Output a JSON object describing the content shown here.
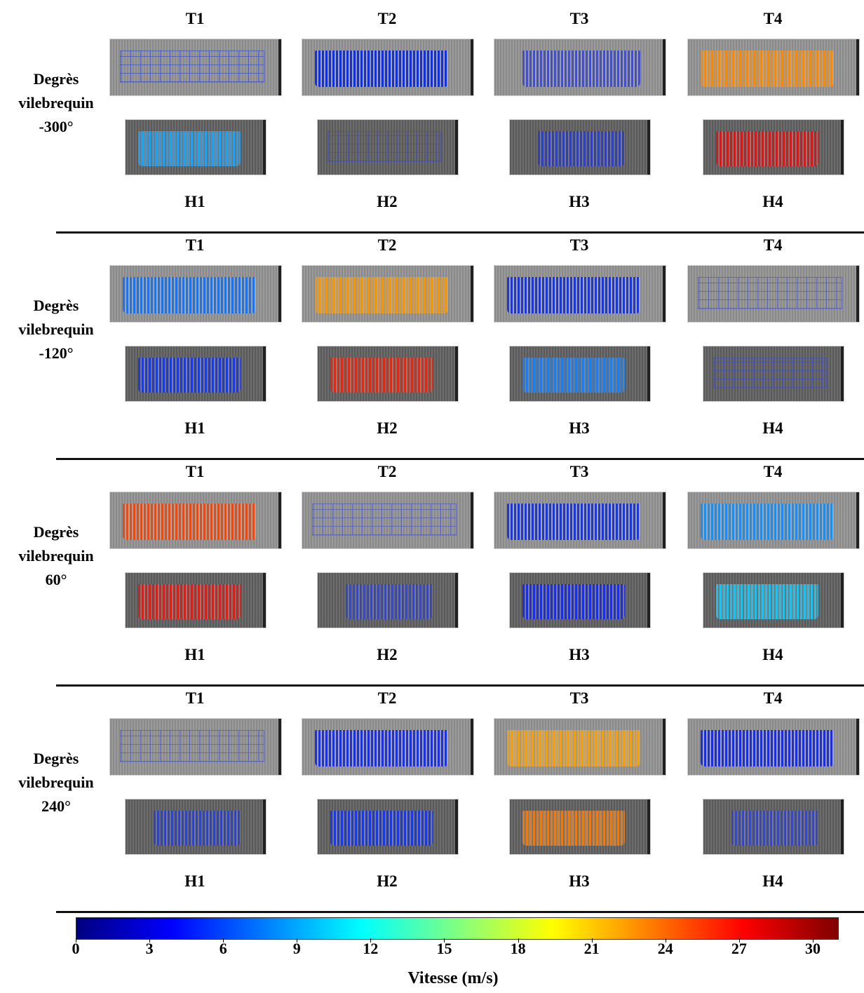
{
  "rows": [
    {
      "label_lines": [
        "Degrès",
        "vilebrequin",
        "-300°"
      ],
      "top": [
        "T1",
        "T2",
        "T3",
        "T4"
      ],
      "bottom": [
        "H1",
        "H2",
        "H3",
        "H4"
      ],
      "top_colors": [
        "#1f3ee0",
        "#1030e8",
        "#2a3ad8",
        "#f08a10"
      ],
      "bottom_colors": [
        "#22a0ee",
        "#3a48c8",
        "#1c34dc",
        "#d21a1a"
      ],
      "top_style": [
        "dots",
        "solid",
        "mixed",
        "solid"
      ],
      "bottom_style": [
        "solid",
        "dots",
        "mixed",
        "solid"
      ]
    },
    {
      "label_lines": [
        "Degrès",
        "vilebrequin",
        "-120°"
      ],
      "top": [
        "T1",
        "T2",
        "T3",
        "T4"
      ],
      "bottom": [
        "H1",
        "H2",
        "H3",
        "H4"
      ],
      "top_colors": [
        "#1a74f0",
        "#f0960e",
        "#1a36e0",
        "#3a4ad0"
      ],
      "bottom_colors": [
        "#1c3ae2",
        "#dc2a14",
        "#1a7ef0",
        "#3a4ad0"
      ],
      "top_style": [
        "solid",
        "solid",
        "solid",
        "dots"
      ],
      "bottom_style": [
        "solid",
        "solid",
        "solid",
        "dots"
      ]
    },
    {
      "label_lines": [
        "Degrès",
        "vilebrequin",
        "60°"
      ],
      "top": [
        "T1",
        "T2",
        "T3",
        "T4"
      ],
      "bottom": [
        "H1",
        "H2",
        "H3",
        "H4"
      ],
      "top_colors": [
        "#ea4a14",
        "#3a4ad0",
        "#1a36e0",
        "#1c8ef0"
      ],
      "bottom_colors": [
        "#d8201a",
        "#2a40d8",
        "#1a2ee8",
        "#1ec0ee"
      ],
      "top_style": [
        "solid",
        "dots",
        "solid",
        "solid"
      ],
      "bottom_style": [
        "solid",
        "mixed",
        "solid",
        "solid"
      ]
    },
    {
      "label_lines": [
        "Degrès",
        "vilebrequin",
        "240°"
      ],
      "top": [
        "T1",
        "T2",
        "T3",
        "T4"
      ],
      "bottom": [
        "H1",
        "H2",
        "H3",
        "H4"
      ],
      "top_colors": [
        "#3a4ad0",
        "#1a30ea",
        "#f0a012",
        "#1a2ee8"
      ],
      "bottom_colors": [
        "#1e3ae0",
        "#1a38e4",
        "#ec7a12",
        "#2a40d8"
      ],
      "top_style": [
        "dots",
        "solid",
        "solid",
        "solid"
      ],
      "bottom_style": [
        "mixed",
        "solid",
        "solid",
        "mixed"
      ]
    }
  ],
  "colorbar": {
    "ticks": [
      "0",
      "3",
      "6",
      "9",
      "12",
      "15",
      "18",
      "21",
      "24",
      "27",
      "30"
    ],
    "label": "Vitesse (m/s)",
    "range": [
      0,
      31
    ],
    "colors": [
      "#000080",
      "#0000ff",
      "#0080ff",
      "#00ffff",
      "#80ff80",
      "#ffff00",
      "#ff8000",
      "#ff0000",
      "#800000"
    ]
  }
}
